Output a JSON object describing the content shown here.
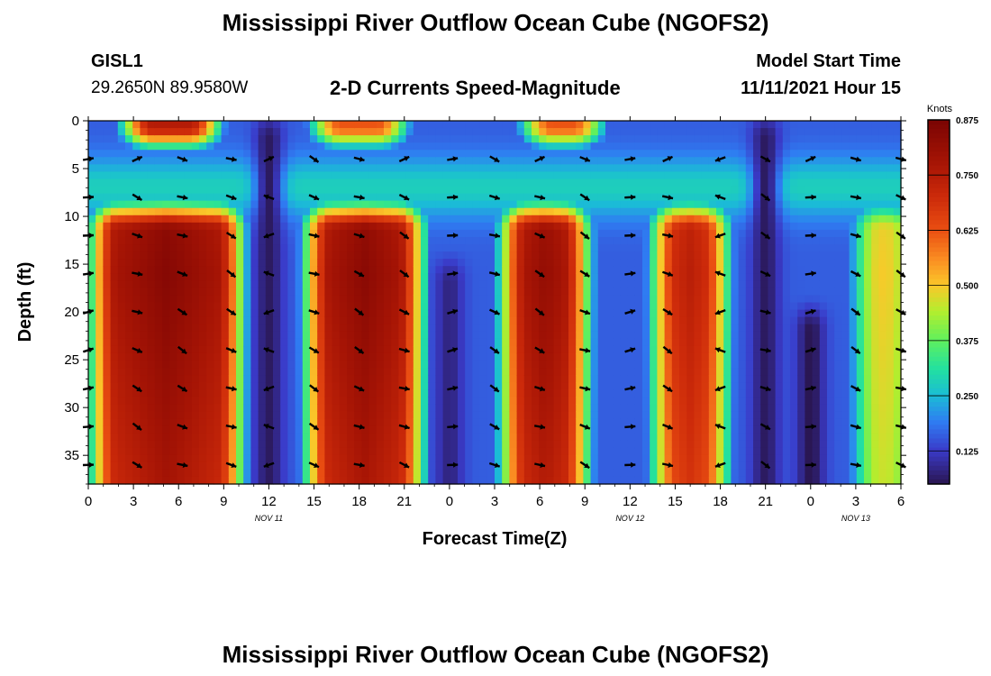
{
  "header": {
    "title": "Mississippi River Outflow Ocean Cube (NGOFS2)",
    "station_id": "GISL1",
    "station_coords": "29.2650N  89.9580W",
    "subtitle": "2-D Currents Speed-Magnitude",
    "model_start_label": "Model Start Time",
    "model_start_value": "11/11/2021 Hour 15"
  },
  "footer": {
    "title": "Mississippi River Outflow Ocean Cube (NGOFS2)"
  },
  "chart_data": {
    "type": "heatmap",
    "title": "2-D Currents Speed-Magnitude",
    "xlabel": "Forecast Time(Z)",
    "ylabel": "Depth (ft)",
    "x_range_hours": [
      0,
      54
    ],
    "ylim": [
      0,
      38
    ],
    "y_inverted": true,
    "x_ticks": [
      {
        "hour": 0,
        "label": "0"
      },
      {
        "hour": 3,
        "label": "3"
      },
      {
        "hour": 6,
        "label": "6"
      },
      {
        "hour": 9,
        "label": "9"
      },
      {
        "hour": 12,
        "label": "12"
      },
      {
        "hour": 15,
        "label": "15"
      },
      {
        "hour": 18,
        "label": "18"
      },
      {
        "hour": 21,
        "label": "21"
      },
      {
        "hour": 24,
        "label": "0"
      },
      {
        "hour": 27,
        "label": "3"
      },
      {
        "hour": 30,
        "label": "6"
      },
      {
        "hour": 33,
        "label": "9"
      },
      {
        "hour": 36,
        "label": "12"
      },
      {
        "hour": 39,
        "label": "15"
      },
      {
        "hour": 42,
        "label": "18"
      },
      {
        "hour": 45,
        "label": "21"
      },
      {
        "hour": 48,
        "label": "0"
      },
      {
        "hour": 51,
        "label": "3"
      },
      {
        "hour": 54,
        "label": "6"
      }
    ],
    "date_labels": [
      {
        "hour": 12,
        "label": "NOV 11"
      },
      {
        "hour": 36,
        "label": "NOV 12"
      },
      {
        "hour": 51,
        "label": "NOV 13"
      }
    ],
    "y_ticks": [
      0,
      5,
      10,
      15,
      20,
      25,
      30,
      35
    ],
    "colorbar": {
      "unit": "Knots",
      "labels": [
        "0.875",
        "0.750",
        "0.625",
        "0.500",
        "0.375",
        "0.250",
        "0.125"
      ],
      "min": 0.05,
      "max": 0.875,
      "stops": [
        {
          "v": 0.05,
          "c": "#2a1650"
        },
        {
          "v": 0.125,
          "c": "#3a3ac8"
        },
        {
          "v": 0.19,
          "c": "#2f7cf2"
        },
        {
          "v": 0.25,
          "c": "#1bbcd6"
        },
        {
          "v": 0.31,
          "c": "#22e0a0"
        },
        {
          "v": 0.375,
          "c": "#5ff05e"
        },
        {
          "v": 0.44,
          "c": "#b2ee2e"
        },
        {
          "v": 0.5,
          "c": "#fac82a"
        },
        {
          "v": 0.56,
          "c": "#fa8c22"
        },
        {
          "v": 0.625,
          "c": "#ea4f12"
        },
        {
          "v": 0.7,
          "c": "#cc2a0a"
        },
        {
          "v": 0.78,
          "c": "#a51405"
        },
        {
          "v": 0.875,
          "c": "#7a0403"
        }
      ]
    },
    "strong_current_blocks": [
      {
        "t0": 0.3,
        "t1": 10.2,
        "peak": 0.85
      },
      {
        "t0": 14.5,
        "t1": 22.2,
        "peak": 0.84
      },
      {
        "t0": 27.5,
        "t1": 33.2,
        "peak": 0.82
      },
      {
        "t0": 37.5,
        "t1": 42.5,
        "peak": 0.74
      },
      {
        "t0": 50.8,
        "t1": 55.0,
        "peak": 0.5
      }
    ],
    "surface_blocks": [
      {
        "t0": 2.5,
        "t1": 8.5,
        "peak": 0.75
      },
      {
        "t0": 15.0,
        "t1": 21.0,
        "peak": 0.62
      },
      {
        "t0": 29.0,
        "t1": 34.0,
        "peak": 0.62
      }
    ],
    "slack_minima": [
      {
        "t": 12.0,
        "depth_from": 0,
        "v": 0.06
      },
      {
        "t": 24.0,
        "depth_from": 15,
        "v": 0.08
      },
      {
        "t": 45.0,
        "depth_from": 0,
        "v": 0.06
      },
      {
        "t": 48.0,
        "depth_from": 20,
        "v": 0.05
      }
    ],
    "vector_columns_hours": [
      0,
      3.25,
      6.25,
      9.5,
      12,
      15,
      18,
      21,
      24.2,
      27,
      30,
      33,
      36,
      38.5,
      42,
      45,
      48,
      51,
      54
    ],
    "vector_rows_depth": [
      4,
      8,
      12,
      16,
      20,
      24,
      28,
      32,
      36
    ]
  }
}
